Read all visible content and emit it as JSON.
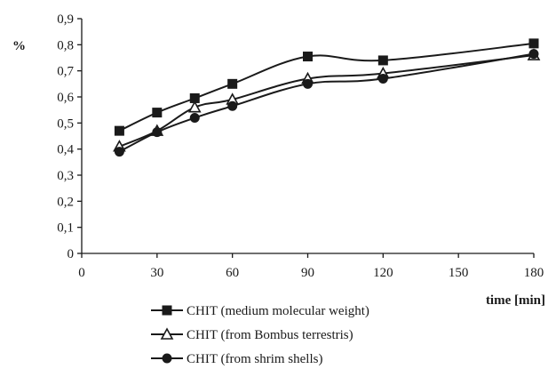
{
  "chart_data": {
    "type": "line",
    "title": "",
    "xlabel": "time [min]",
    "ylabel": "%",
    "xlim": [
      0,
      180
    ],
    "ylim": [
      0,
      0.9
    ],
    "x_ticks": [
      0,
      30,
      60,
      90,
      120,
      150,
      180
    ],
    "x_tick_labels": [
      "0",
      "30",
      "60",
      "90",
      "120",
      "150",
      "180"
    ],
    "y_ticks": [
      0,
      0.1,
      0.2,
      0.3,
      0.4,
      0.5,
      0.6,
      0.7,
      0.8,
      0.9
    ],
    "y_tick_labels": [
      "0",
      "0,1",
      "0,2",
      "0,3",
      "0,4",
      "0,5",
      "0,6",
      "0,7",
      "0,8",
      "0,9"
    ],
    "grid": false,
    "legend_position": "bottom",
    "x": [
      15,
      30,
      45,
      60,
      90,
      120,
      180
    ],
    "series": [
      {
        "name": "CHIT (medium molecular weight)",
        "marker": "square",
        "values": [
          0.47,
          0.54,
          0.595,
          0.65,
          0.755,
          0.74,
          0.805
        ]
      },
      {
        "name": "CHIT (from Bombus terrestris)",
        "marker": "triangle",
        "values": [
          0.41,
          0.47,
          0.56,
          0.59,
          0.67,
          0.69,
          0.76
        ]
      },
      {
        "name": "CHIT (from shrim shells)",
        "marker": "circle",
        "values": [
          0.39,
          0.465,
          0.52,
          0.565,
          0.65,
          0.67,
          0.765
        ]
      }
    ],
    "colors": {
      "ink": "#1a1a1a"
    }
  }
}
